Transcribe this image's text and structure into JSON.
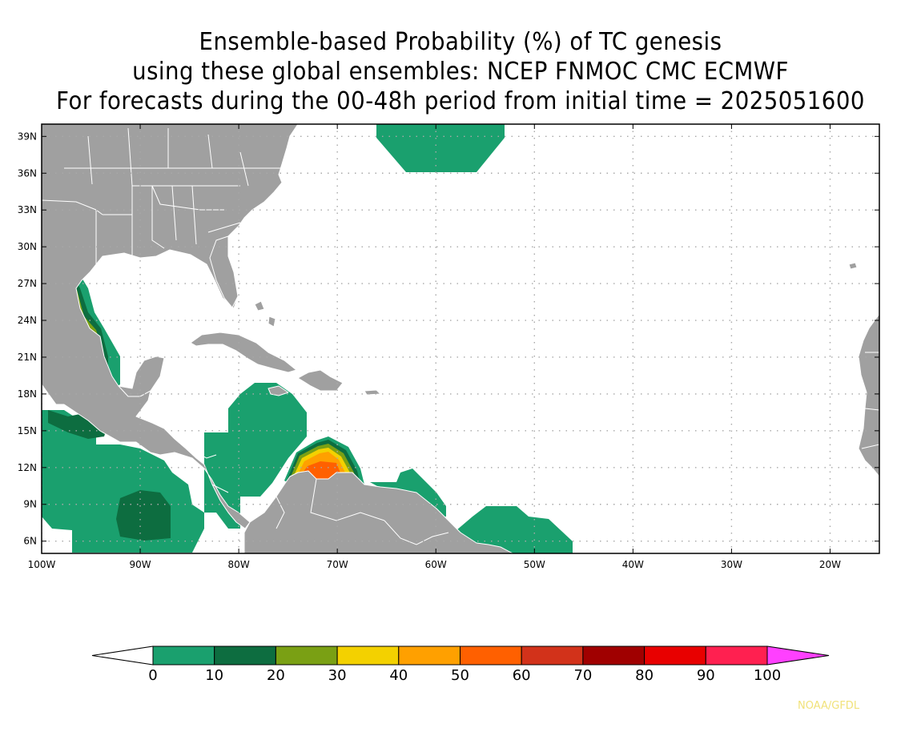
{
  "title": {
    "line1": "Ensemble-based Probability (%) of TC genesis",
    "line2": "using these global ensembles:   NCEP FNMOC CMC ECMWF",
    "line3": "For forecasts during the 00-48h period from initial time = 2025051600"
  },
  "map": {
    "lon_range": [
      -100,
      -15
    ],
    "lat_range": [
      5,
      40
    ],
    "lat_ticks": [
      {
        "value": 39,
        "label": "39N"
      },
      {
        "value": 36,
        "label": "36N"
      },
      {
        "value": 33,
        "label": "33N"
      },
      {
        "value": 30,
        "label": "30N"
      },
      {
        "value": 27,
        "label": "27N"
      },
      {
        "value": 24,
        "label": "24N"
      },
      {
        "value": 21,
        "label": "21N"
      },
      {
        "value": 18,
        "label": "18N"
      },
      {
        "value": 15,
        "label": "15N"
      },
      {
        "value": 12,
        "label": "12N"
      },
      {
        "value": 9,
        "label": "9N"
      },
      {
        "value": 6,
        "label": "6N"
      }
    ],
    "lon_ticks": [
      {
        "value": -100,
        "label": "100W"
      },
      {
        "value": -90,
        "label": "90W"
      },
      {
        "value": -80,
        "label": "80W"
      },
      {
        "value": -70,
        "label": "70W"
      },
      {
        "value": -60,
        "label": "60W"
      },
      {
        "value": -50,
        "label": "50W"
      },
      {
        "value": -40,
        "label": "40W"
      },
      {
        "value": -30,
        "label": "30W"
      },
      {
        "value": -20,
        "label": "20W"
      }
    ],
    "colors": {
      "land": "#a0a0a0",
      "border": "#ffffff",
      "grid": "#a8a8a8",
      "frame": "#000000"
    }
  },
  "colorbar": {
    "bins": [
      {
        "from": 0,
        "to": 10,
        "color": "#1aa06e"
      },
      {
        "from": 10,
        "to": 20,
        "color": "#0d6d40"
      },
      {
        "from": 20,
        "to": 30,
        "color": "#7aa014"
      },
      {
        "from": 30,
        "to": 40,
        "color": "#f3d100"
      },
      {
        "from": 40,
        "to": 50,
        "color": "#ffa000"
      },
      {
        "from": 50,
        "to": 60,
        "color": "#ff6000"
      },
      {
        "from": 60,
        "to": 70,
        "color": "#d2321a"
      },
      {
        "from": 70,
        "to": 80,
        "color": "#a00000"
      },
      {
        "from": 80,
        "to": 90,
        "color": "#e80000"
      },
      {
        "from": 90,
        "to": 100,
        "color": "#ff2050"
      }
    ],
    "under_color": "#ffffff",
    "over_color": "#ff40ff",
    "labels": [
      "0",
      "10",
      "20",
      "30",
      "40",
      "50",
      "60",
      "70",
      "80",
      "90",
      "100"
    ]
  },
  "credit": "NOAA/GFDL"
}
